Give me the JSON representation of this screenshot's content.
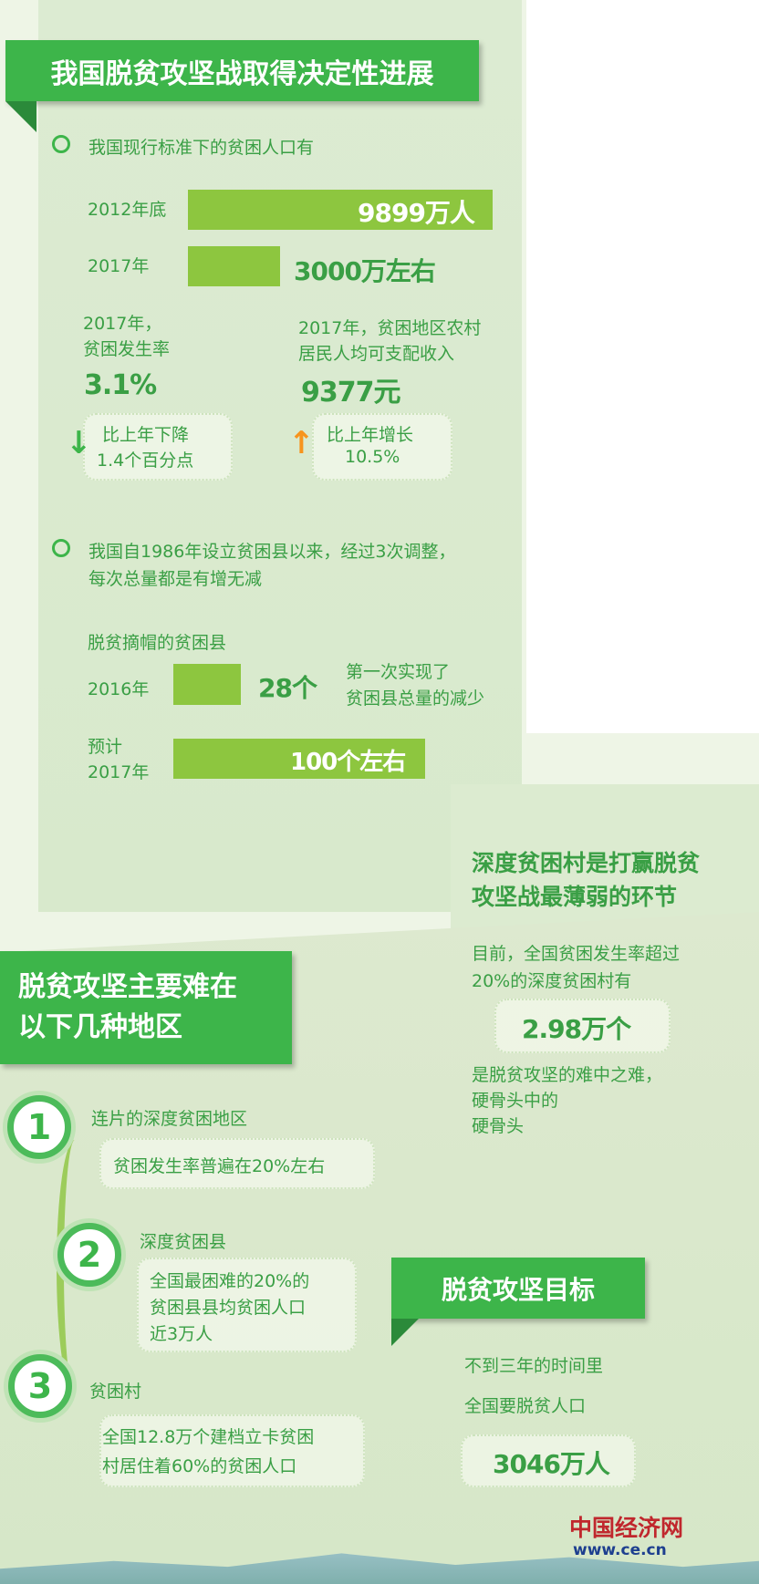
{
  "section1": {
    "title": "我国脱贫攻坚战取得决定性进展",
    "point1": "我国现行标准下的贫困人口有",
    "bars": [
      {
        "label": "2012年底",
        "value_text": "9899万人",
        "value": 9899
      },
      {
        "label": "2017年",
        "value_text": "3000万左右",
        "value": 3000
      }
    ],
    "rate": {
      "line1": "2017年，",
      "line2": "贫困发生率",
      "value": "3.1%",
      "change_line1": "比上年下降",
      "change_line2": "1.4个百分点",
      "arrow": "arrow-down-icon"
    },
    "income": {
      "line1": "2017年，贫困地区农村",
      "line2": "居民人均可支配收入",
      "value": "9377元",
      "change_line1": "比上年增长",
      "change_line2": "10.5%",
      "arrow": "arrow-up-icon"
    },
    "point2_line1": "我国自1986年设立贫困县以来，经过3次调整，",
    "point2_line2": "每次总量都是有增无减",
    "county_heading": "脱贫摘帽的贫困县",
    "county_bars": [
      {
        "label": "2016年",
        "value_text": "28个",
        "value": 28,
        "note_line1": "第一次实现了",
        "note_line2": "贫困县总量的减少"
      },
      {
        "label_line1": "预计",
        "label_line2": "2017年",
        "value_text": "100个左右",
        "value": 100
      }
    ]
  },
  "section2": {
    "title_line1": "深度贫困村是打赢脱贫",
    "title_line2": "攻坚战最薄弱的环节",
    "text_line1": "目前，全国贫困发生率超过",
    "text_line2": "20%的深度贫困村有",
    "value": "2.98万个",
    "after_line1": "是脱贫攻坚的难中之难，",
    "after_line2": "硬骨头中的",
    "after_line3": "硬骨头"
  },
  "section3": {
    "title_line1": "脱贫攻坚主要难在",
    "title_line2": "以下几种地区",
    "items": [
      {
        "num": "1",
        "title": "连片的深度贫困地区",
        "lines": [
          "贫困发生率普遍在20%左右"
        ]
      },
      {
        "num": "2",
        "title": "深度贫困县",
        "lines": [
          "全国最困难的20%的",
          "贫困县县均贫困人口",
          "近3万人"
        ]
      },
      {
        "num": "3",
        "title": "贫困村",
        "lines": [
          "全国12.8万个建档立卡贫困",
          "村居住着60%的贫困人口"
        ]
      }
    ]
  },
  "section4": {
    "title": "脱贫攻坚目标",
    "line1": "不到三年的时间里",
    "line2": "全国要脱贫人口",
    "value": "3046万人"
  },
  "logo": {
    "name": "中国经济网",
    "url": "www.ce.cn"
  },
  "colors": {
    "banner": "#3db54a",
    "bar": "#8dc63f",
    "text": "#3a9f45",
    "up_arrow": "#f7941d",
    "logo_red": "#c0272d",
    "logo_blue": "#1d3f8f"
  }
}
